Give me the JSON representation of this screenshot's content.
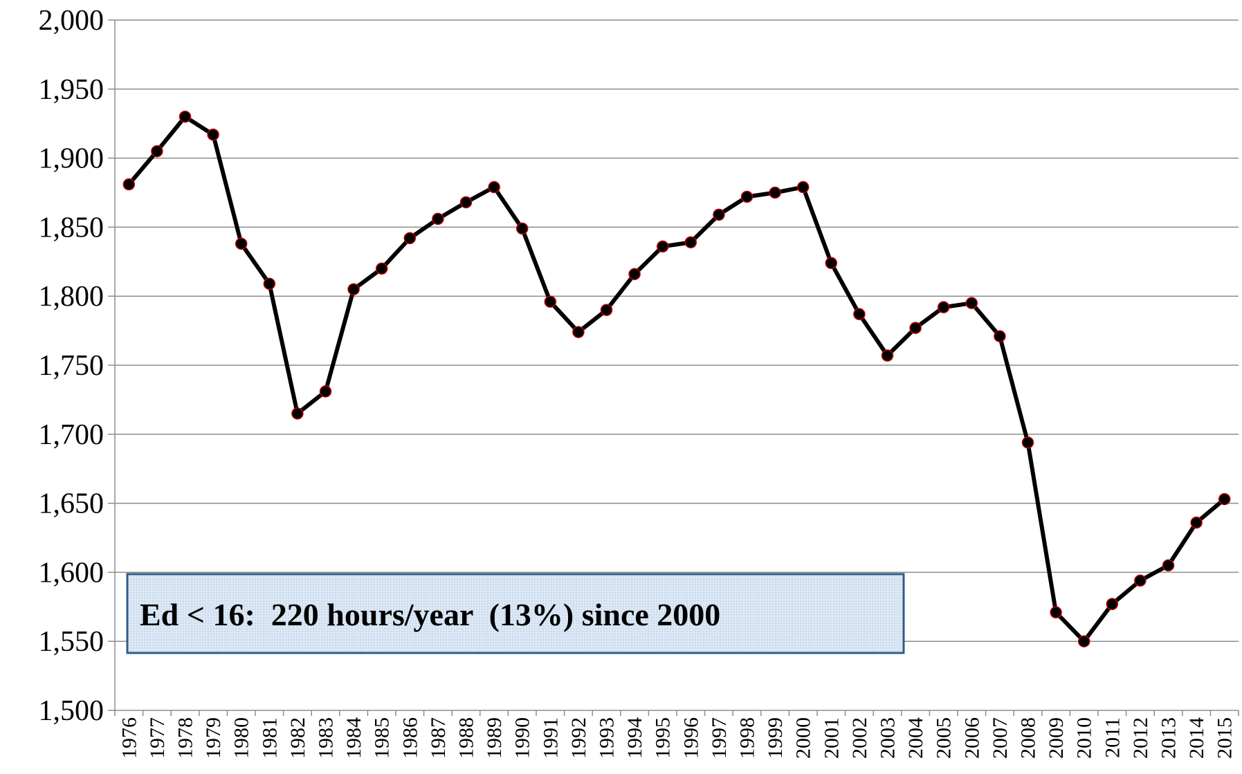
{
  "chart_data": {
    "type": "line",
    "categories": [
      "1976",
      "1977",
      "1978",
      "1979",
      "1980",
      "1981",
      "1982",
      "1983",
      "1984",
      "1985",
      "1986",
      "1987",
      "1988",
      "1989",
      "1990",
      "1991",
      "1992",
      "1993",
      "1994",
      "1995",
      "1996",
      "1997",
      "1998",
      "1999",
      "2000",
      "2001",
      "2002",
      "2003",
      "2004",
      "2005",
      "2006",
      "2007",
      "2008",
      "2009",
      "2010",
      "2011",
      "2012",
      "2013",
      "2014",
      "2015"
    ],
    "series": [
      {
        "color": "#000000",
        "marker_edge": "#c00000",
        "values": [
          1881,
          1905,
          1930,
          1917,
          1838,
          1809,
          1715,
          1731,
          1805,
          1820,
          1842,
          1856,
          1868,
          1879,
          1849,
          1796,
          1774,
          1790,
          1816,
          1836,
          1839,
          1859,
          1872,
          1875,
          1879,
          1824,
          1787,
          1757,
          1777,
          1792,
          1795,
          1771,
          1694,
          1571,
          1550,
          1577,
          1594,
          1605,
          1636,
          1653
        ]
      }
    ],
    "ylim": [
      1500,
      2000
    ],
    "yticks": [
      {
        "value": 1500,
        "label": "1,500"
      },
      {
        "value": 1550,
        "label": "1,550"
      },
      {
        "value": 1600,
        "label": "1,600"
      },
      {
        "value": 1650,
        "label": "1,650"
      },
      {
        "value": 1700,
        "label": "1,700"
      },
      {
        "value": 1750,
        "label": "1,750"
      },
      {
        "value": 1800,
        "label": "1,800"
      },
      {
        "value": 1850,
        "label": "1,850"
      },
      {
        "value": 1900,
        "label": "1,900"
      },
      {
        "value": 1950,
        "label": "1,950"
      },
      {
        "value": 2000,
        "label": "2,000"
      }
    ],
    "grid": true,
    "annotation": "Ed < 16:  220 hours/year  (13%) since 2000"
  }
}
